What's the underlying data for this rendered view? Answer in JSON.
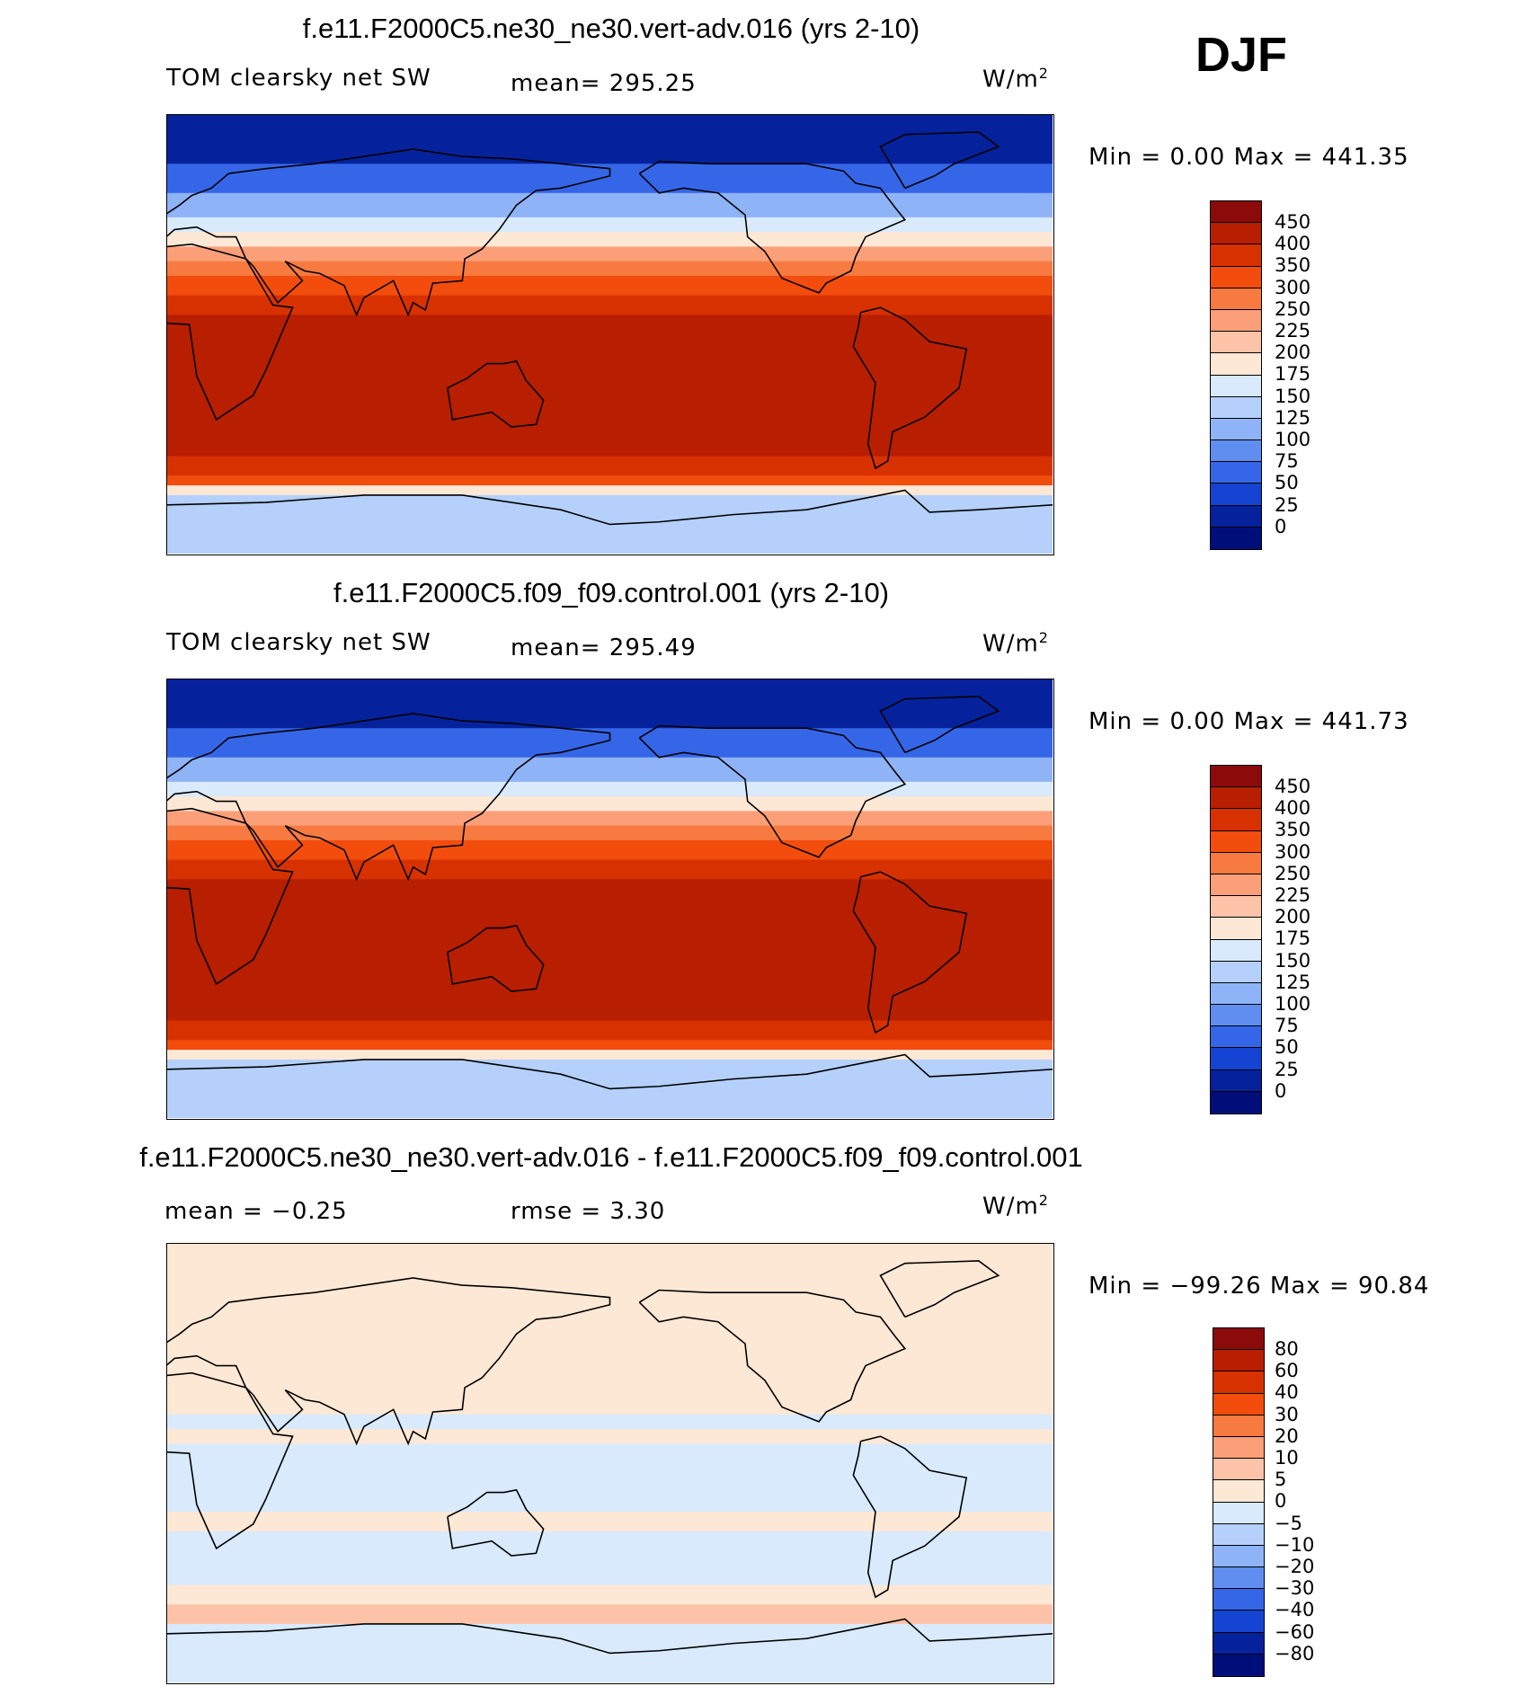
{
  "season": "DJF",
  "chart_data": [
    {
      "type": "heatmap",
      "title": "f.e11.F2000C5.ne30_ne30.vert-adv.016 (yrs 2-10)",
      "variable": "TOM clearsky net SW",
      "mean_label": "mean= 295.25",
      "units": "W/m",
      "units_exp": "2",
      "minmax": "Min =    0.00 Max = 441.35",
      "min": 0.0,
      "max": 441.35,
      "colorbar_levels": [
        "450",
        "400",
        "350",
        "300",
        "250",
        "225",
        "200",
        "175",
        "150",
        "125",
        "100",
        "75",
        "50",
        "25",
        "0"
      ],
      "colorbar_colors": [
        "#8b0a0a",
        "#b81e00",
        "#d83100",
        "#f24d0d",
        "#f77a40",
        "#fb9f78",
        "#fdc3a8",
        "#fde8d6",
        "#d8eafc",
        "#b5d0fb",
        "#8fb3f7",
        "#5f8ef0",
        "#3566e8",
        "#1544d2",
        "#05229c",
        "#000e7a"
      ],
      "field": [
        {
          "lat_from": 90,
          "lat_to": 70,
          "value": 10
        },
        {
          "lat_from": 70,
          "lat_to": 58,
          "value": 50
        },
        {
          "lat_from": 58,
          "lat_to": 48,
          "value": 110
        },
        {
          "lat_from": 48,
          "lat_to": 42,
          "value": 160
        },
        {
          "lat_from": 42,
          "lat_to": 36,
          "value": 190
        },
        {
          "lat_from": 36,
          "lat_to": 30,
          "value": 230
        },
        {
          "lat_from": 30,
          "lat_to": 24,
          "value": 270
        },
        {
          "lat_from": 24,
          "lat_to": 16,
          "value": 320
        },
        {
          "lat_from": 16,
          "lat_to": 8,
          "value": 370
        },
        {
          "lat_from": 8,
          "lat_to": -40,
          "value": 420
        },
        {
          "lat_from": -40,
          "lat_to": -50,
          "value": 400
        },
        {
          "lat_from": -50,
          "lat_to": -58,
          "value": 360
        },
        {
          "lat_from": -58,
          "lat_to": -62,
          "value": 300
        },
        {
          "lat_from": -62,
          "lat_to": -66,
          "value": 180
        },
        {
          "lat_from": -66,
          "lat_to": -90,
          "value": 130
        }
      ]
    },
    {
      "type": "heatmap",
      "title": "f.e11.F2000C5.f09_f09.control.001 (yrs 2-10)",
      "variable": "TOM clearsky net SW",
      "mean_label": "mean= 295.49",
      "units": "W/m",
      "units_exp": "2",
      "minmax": "Min =    0.00 Max = 441.73",
      "min": 0.0,
      "max": 441.73,
      "colorbar_levels": [
        "450",
        "400",
        "350",
        "300",
        "250",
        "225",
        "200",
        "175",
        "150",
        "125",
        "100",
        "75",
        "50",
        "25",
        "0"
      ],
      "colorbar_colors": [
        "#8b0a0a",
        "#b81e00",
        "#d83100",
        "#f24d0d",
        "#f77a40",
        "#fb9f78",
        "#fdc3a8",
        "#fde8d6",
        "#d8eafc",
        "#b5d0fb",
        "#8fb3f7",
        "#5f8ef0",
        "#3566e8",
        "#1544d2",
        "#05229c",
        "#000e7a"
      ],
      "field": [
        {
          "lat_from": 90,
          "lat_to": 70,
          "value": 10
        },
        {
          "lat_from": 70,
          "lat_to": 58,
          "value": 50
        },
        {
          "lat_from": 58,
          "lat_to": 48,
          "value": 110
        },
        {
          "lat_from": 48,
          "lat_to": 42,
          "value": 160
        },
        {
          "lat_from": 42,
          "lat_to": 36,
          "value": 190
        },
        {
          "lat_from": 36,
          "lat_to": 30,
          "value": 230
        },
        {
          "lat_from": 30,
          "lat_to": 24,
          "value": 270
        },
        {
          "lat_from": 24,
          "lat_to": 16,
          "value": 320
        },
        {
          "lat_from": 16,
          "lat_to": 8,
          "value": 370
        },
        {
          "lat_from": 8,
          "lat_to": -40,
          "value": 420
        },
        {
          "lat_from": -40,
          "lat_to": -50,
          "value": 400
        },
        {
          "lat_from": -50,
          "lat_to": -58,
          "value": 360
        },
        {
          "lat_from": -58,
          "lat_to": -62,
          "value": 300
        },
        {
          "lat_from": -62,
          "lat_to": -66,
          "value": 180
        },
        {
          "lat_from": -66,
          "lat_to": -90,
          "value": 130
        }
      ]
    },
    {
      "type": "heatmap",
      "title": "f.e11.F2000C5.ne30_ne30.vert-adv.016 - f.e11.F2000C5.f09_f09.control.001",
      "variable": "",
      "mean_label": "mean =   −0.25",
      "rmse_label": "rmse =     3.30",
      "units": "W/m",
      "units_exp": "2",
      "minmax": "Min = −99.26 Max =   90.84",
      "min": -99.26,
      "max": 90.84,
      "colorbar_levels": [
        "80",
        "60",
        "40",
        "30",
        "20",
        "10",
        "5",
        "0",
        "−5",
        "−10",
        "−20",
        "−30",
        "−40",
        "−60",
        "−80"
      ],
      "colorbar_colors": [
        "#8b0a0a",
        "#b81e00",
        "#d83100",
        "#f24d0d",
        "#f77a40",
        "#fb9f78",
        "#fdc3a8",
        "#fde8d6",
        "#d8eafc",
        "#b5d0fb",
        "#8fb3f7",
        "#5f8ef0",
        "#3566e8",
        "#1544d2",
        "#05229c",
        "#000e7a"
      ],
      "field": [
        {
          "lat_from": 90,
          "lat_to": 20,
          "value": 2
        },
        {
          "lat_from": 20,
          "lat_to": 14,
          "value": -2
        },
        {
          "lat_from": 14,
          "lat_to": 8,
          "value": 2
        },
        {
          "lat_from": 8,
          "lat_to": -8,
          "value": -2
        },
        {
          "lat_from": -8,
          "lat_to": -20,
          "value": -2
        },
        {
          "lat_from": -20,
          "lat_to": -28,
          "value": 2
        },
        {
          "lat_from": -28,
          "lat_to": -50,
          "value": -2
        },
        {
          "lat_from": -50,
          "lat_to": -58,
          "value": 2
        },
        {
          "lat_from": -58,
          "lat_to": -66,
          "value": 8
        },
        {
          "lat_from": -66,
          "lat_to": -90,
          "value": -2
        }
      ]
    }
  ]
}
